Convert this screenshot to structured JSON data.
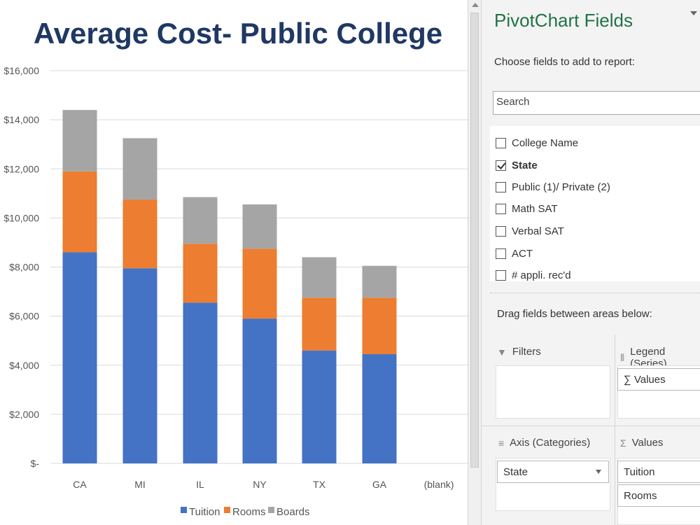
{
  "chart_data": {
    "type": "bar",
    "stacked": true,
    "title": "Average Cost- Public College",
    "categories": [
      "CA",
      "MI",
      "IL",
      "NY",
      "TX",
      "GA",
      "(blank)"
    ],
    "series": [
      {
        "name": "Tuition",
        "color": "#4472c4",
        "values": [
          8600,
          7950,
          6550,
          5900,
          4600,
          4450,
          0
        ]
      },
      {
        "name": "Rooms",
        "color": "#ed7d31",
        "values": [
          3300,
          2800,
          2400,
          2850,
          2150,
          2300,
          0
        ]
      },
      {
        "name": "Boards",
        "color": "#a5a5a5",
        "values": [
          2500,
          2500,
          1900,
          1800,
          1650,
          1300,
          0
        ]
      }
    ],
    "ylim": [
      0,
      16000
    ],
    "yticks": [
      0,
      2000,
      4000,
      6000,
      8000,
      10000,
      12000,
      14000,
      16000
    ],
    "ytick_labels": [
      "$-",
      "$2,000",
      "$4,000",
      "$6,000",
      "$8,000",
      "$10,000",
      "$12,000",
      "$14,000",
      "$16,000"
    ],
    "grid": true,
    "legend": "bottom"
  },
  "pane": {
    "title": "PivotChart Fields",
    "instruction": "Choose fields to add to report:",
    "search_placeholder": "Search",
    "fields": [
      {
        "label": "College Name",
        "checked": false
      },
      {
        "label": "State",
        "checked": true
      },
      {
        "label": "Public (1)/ Private (2)",
        "checked": false
      },
      {
        "label": "Math SAT",
        "checked": false
      },
      {
        "label": "Verbal SAT",
        "checked": false
      },
      {
        "label": "ACT",
        "checked": false
      },
      {
        "label": "# appli. rec'd",
        "checked": false
      }
    ],
    "drag_instruction": "Drag fields between areas below:",
    "areas": {
      "filters": {
        "label": "Filters",
        "icon": "filter-icon"
      },
      "legend": {
        "label": "Legend (Series)",
        "icon": "columns-icon",
        "items": [
          "∑ Values"
        ]
      },
      "axis": {
        "label": "Axis (Categories)",
        "icon": "rows-icon",
        "items": [
          "State"
        ]
      },
      "values": {
        "label": "Values",
        "icon": "sigma-icon",
        "items": [
          "Tuition",
          "Rooms"
        ]
      }
    }
  }
}
